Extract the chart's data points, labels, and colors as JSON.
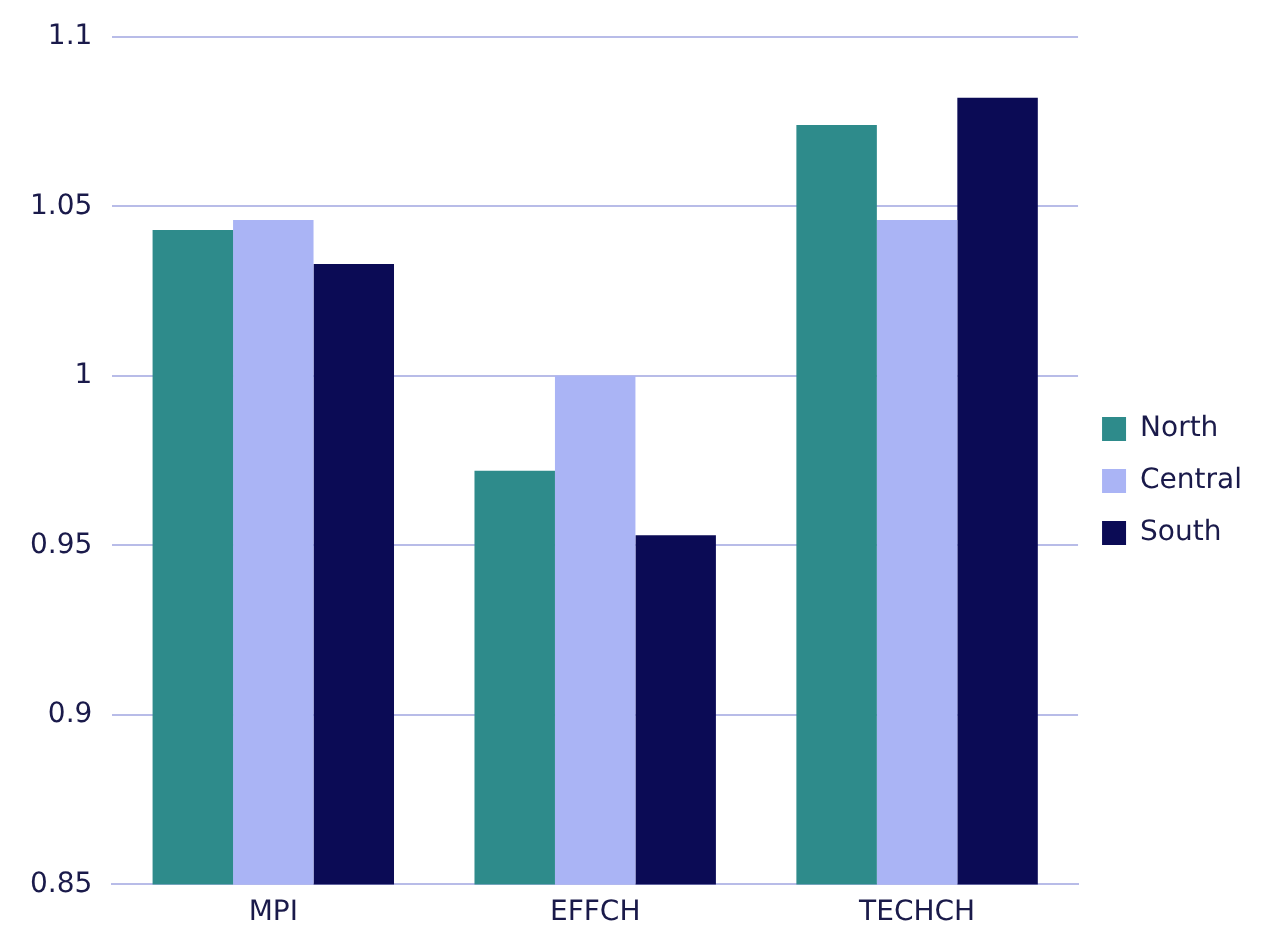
{
  "chart_data": {
    "type": "bar",
    "categories": [
      "MPI",
      "EFFCH",
      "TECHCH"
    ],
    "series": [
      {
        "name": "North",
        "color": "#2e8b8b",
        "values": [
          1.043,
          0.972,
          1.074
        ]
      },
      {
        "name": "Central",
        "color": "#aab4f5",
        "values": [
          1.046,
          1.0,
          1.046
        ]
      },
      {
        "name": "South",
        "color": "#0b0b55",
        "values": [
          1.033,
          0.953,
          1.082
        ]
      }
    ],
    "ylim": [
      0.85,
      1.1
    ],
    "yticks": [
      0.85,
      0.9,
      0.95,
      1,
      1.05,
      1.1
    ],
    "grid": "y",
    "legend": "right"
  }
}
